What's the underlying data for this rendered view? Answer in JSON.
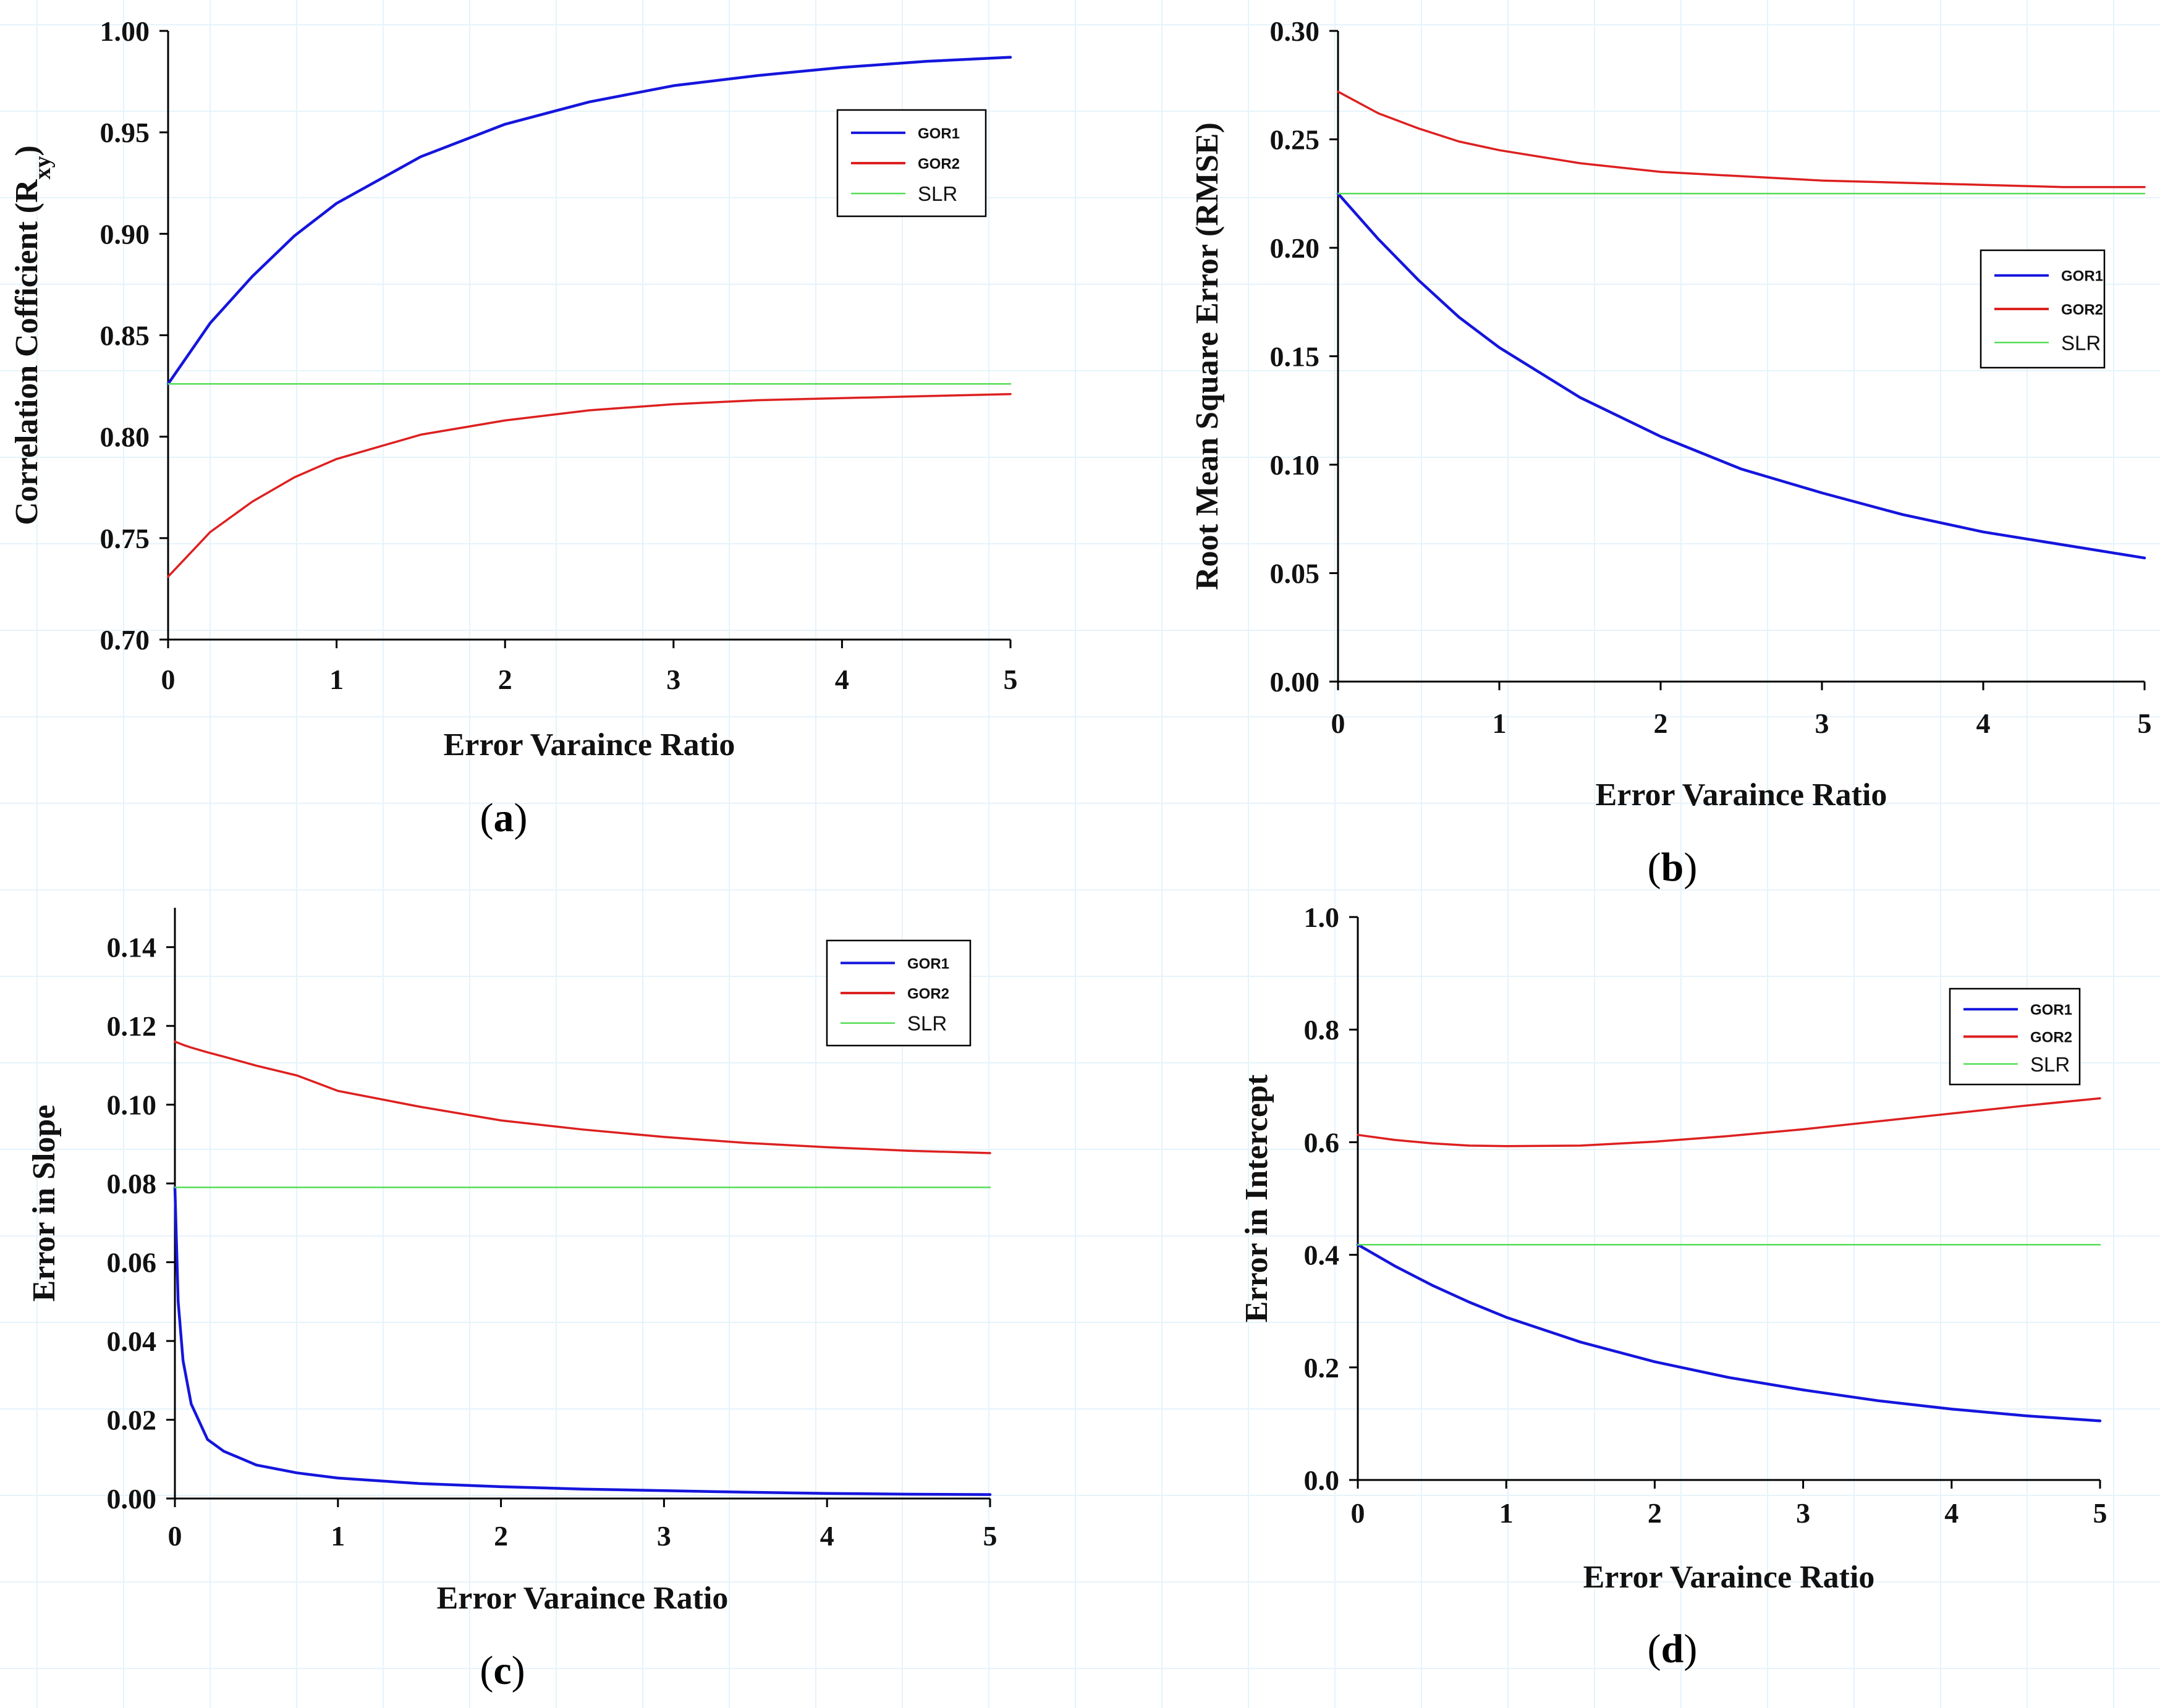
{
  "chart_data": [
    {
      "panel": "(a)",
      "panel_letter": "a",
      "type": "line",
      "xlabel": "Error Varaince Ratio",
      "ylabel_main": "Correlation Cofficient (R",
      "ylabel_sub": "xy",
      "ylabel_close": ")",
      "xlim": [
        0,
        5
      ],
      "ylim": [
        0.7,
        1.0
      ],
      "xticks": [
        "0",
        "1",
        "2",
        "3",
        "4",
        "5"
      ],
      "yticks": [
        "0.70",
        "0.75",
        "0.80",
        "0.85",
        "0.90",
        "0.95",
        "1.00"
      ],
      "legend": [
        "GOR1",
        "GOR2",
        "SLR"
      ],
      "legend_position": "top-right",
      "x": [
        0,
        0.25,
        0.5,
        0.75,
        1,
        1.5,
        2,
        2.5,
        3,
        3.5,
        4,
        4.5,
        5
      ],
      "series": [
        {
          "name": "GOR1",
          "color": "#1515dd",
          "values": [
            0.826,
            0.856,
            0.879,
            0.899,
            0.915,
            0.938,
            0.954,
            0.965,
            0.973,
            0.978,
            0.982,
            0.985,
            0.987
          ]
        },
        {
          "name": "GOR2",
          "color": "#dd2020",
          "values": [
            0.731,
            0.753,
            0.768,
            0.78,
            0.789,
            0.801,
            0.808,
            0.813,
            0.816,
            0.818,
            0.819,
            0.82,
            0.821
          ]
        },
        {
          "name": "SLR",
          "color": "#55dd55",
          "values": [
            0.826,
            0.826,
            0.826,
            0.826,
            0.826,
            0.826,
            0.826,
            0.826,
            0.826,
            0.826,
            0.826,
            0.826,
            0.826
          ]
        }
      ]
    },
    {
      "panel": "(b)",
      "panel_letter": "b",
      "type": "line",
      "xlabel": "Error Varaince Ratio",
      "ylabel_main": "Root Mean Square Error (RMSE)",
      "ylabel_sub": "",
      "ylabel_close": "",
      "xlim": [
        0,
        5
      ],
      "ylim": [
        0.0,
        0.3
      ],
      "xticks": [
        "0",
        "1",
        "2",
        "3",
        "4",
        "5"
      ],
      "yticks": [
        "0.00",
        "0.05",
        "0.10",
        "0.15",
        "0.20",
        "0.25",
        "0.30"
      ],
      "legend": [
        "GOR1",
        "GOR2",
        "SLR"
      ],
      "legend_position": "upper-right",
      "x": [
        0,
        0.25,
        0.5,
        0.75,
        1,
        1.5,
        2,
        2.5,
        3,
        3.5,
        4,
        4.5,
        5
      ],
      "series": [
        {
          "name": "GOR1",
          "color": "#1515dd",
          "values": [
            0.225,
            0.204,
            0.185,
            0.168,
            0.154,
            0.131,
            0.113,
            0.098,
            0.087,
            0.077,
            0.069,
            0.063,
            0.057
          ]
        },
        {
          "name": "GOR2",
          "color": "#dd2020",
          "values": [
            0.272,
            0.262,
            0.255,
            0.249,
            0.245,
            0.239,
            0.235,
            0.233,
            0.231,
            0.23,
            0.229,
            0.228,
            0.228
          ]
        },
        {
          "name": "SLR",
          "color": "#55dd55",
          "values": [
            0.225,
            0.225,
            0.225,
            0.225,
            0.225,
            0.225,
            0.225,
            0.225,
            0.225,
            0.225,
            0.225,
            0.225,
            0.225
          ]
        }
      ]
    },
    {
      "panel": "(c)",
      "panel_letter": "c",
      "type": "line",
      "xlabel": "Error Varaince Ratio",
      "ylabel_main": "Error in Slope",
      "ylabel_sub": "",
      "ylabel_close": "",
      "xlim": [
        0,
        5
      ],
      "ylim": [
        0.0,
        0.15
      ],
      "xticks": [
        "0",
        "1",
        "2",
        "3",
        "4",
        "5"
      ],
      "yticks": [
        "0.00",
        "0.02",
        "0.04",
        "0.06",
        "0.08",
        "0.10",
        "0.12",
        "0.14"
      ],
      "legend": [
        "GOR1",
        "GOR2",
        "SLR"
      ],
      "legend_position": "top-right",
      "x": [
        0,
        0.02,
        0.05,
        0.1,
        0.2,
        0.3,
        0.5,
        0.75,
        1,
        1.5,
        2,
        2.5,
        3,
        3.5,
        4,
        4.5,
        5
      ],
      "series": [
        {
          "name": "GOR1",
          "color": "#1515dd",
          "values": [
            0.079,
            0.05,
            0.035,
            0.024,
            0.015,
            0.012,
            0.0085,
            0.0065,
            0.0052,
            0.0038,
            0.003,
            0.0024,
            0.002,
            0.0016,
            0.0013,
            0.0011,
            0.001
          ]
        },
        {
          "name": "GOR2",
          "color": "#dd2020",
          "values": [
            0.116,
            0.1157,
            0.1152,
            0.1145,
            0.1133,
            0.1122,
            0.1099,
            0.1074,
            0.1035,
            0.0995,
            0.096,
            0.0937,
            0.0918,
            0.0903,
            0.0892,
            0.0883,
            0.0877
          ]
        },
        {
          "name": "SLR",
          "color": "#55dd55",
          "values": [
            0.079,
            0.079,
            0.079,
            0.079,
            0.079,
            0.079,
            0.079,
            0.079,
            0.079,
            0.079,
            0.079,
            0.079,
            0.079,
            0.079,
            0.079,
            0.079,
            0.079
          ]
        }
      ]
    },
    {
      "panel": "(d)",
      "panel_letter": "d",
      "type": "line",
      "xlabel": "Error Varaince Ratio",
      "ylabel_main": "Error in Intercept",
      "ylabel_sub": "",
      "ylabel_close": "",
      "xlim": [
        0,
        5
      ],
      "ylim": [
        0.0,
        1.0
      ],
      "xticks": [
        "0",
        "1",
        "2",
        "3",
        "4",
        "5"
      ],
      "yticks": [
        "0.0",
        "0.2",
        "0.4",
        "0.6",
        "0.8",
        "1.0"
      ],
      "legend": [
        "GOR1",
        "GOR2",
        "SLR"
      ],
      "legend_position": "top-right",
      "x": [
        0,
        0.25,
        0.5,
        0.75,
        1,
        1.5,
        2,
        2.5,
        3,
        3.5,
        4,
        4.5,
        5
      ],
      "series": [
        {
          "name": "GOR1",
          "color": "#1515dd",
          "values": [
            0.418,
            0.38,
            0.346,
            0.316,
            0.289,
            0.245,
            0.21,
            0.182,
            0.16,
            0.141,
            0.126,
            0.114,
            0.105
          ]
        },
        {
          "name": "GOR2",
          "color": "#dd2020",
          "values": [
            0.613,
            0.604,
            0.598,
            0.594,
            0.593,
            0.594,
            0.601,
            0.611,
            0.623,
            0.637,
            0.651,
            0.665,
            0.678
          ]
        },
        {
          "name": "SLR",
          "color": "#55dd55",
          "values": [
            0.418,
            0.418,
            0.418,
            0.418,
            0.418,
            0.418,
            0.418,
            0.418,
            0.418,
            0.418,
            0.418,
            0.418,
            0.418
          ]
        }
      ]
    }
  ]
}
